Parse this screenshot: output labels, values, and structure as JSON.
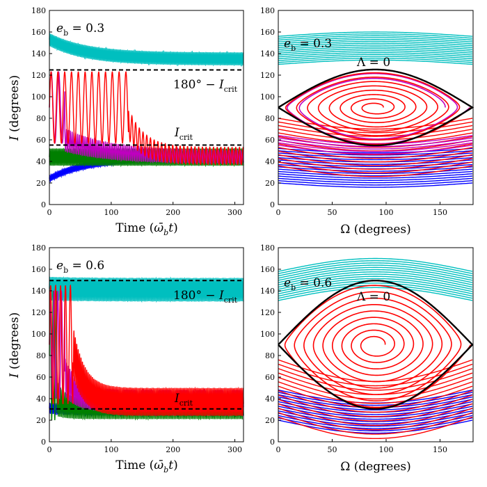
{
  "colors": {
    "cyan": "#00bfbf",
    "red": "#ff0000",
    "magenta": "#bf00bf",
    "green": "#007f00",
    "blue": "#0000ff",
    "black": "#000000"
  },
  "chart_data": [
    {
      "id": "p0",
      "type": "line",
      "kind": "time",
      "eb": 0.3,
      "xlim": [
        0,
        314
      ],
      "ylim": [
        0,
        180
      ],
      "xticks": [
        0,
        100,
        200,
        300
      ],
      "yticks": [
        0,
        20,
        40,
        60,
        80,
        100,
        120,
        140,
        160,
        180
      ],
      "xlabel": "Time (ω̄_b t)",
      "ylabel": "I (degrees)",
      "annotations": {
        "eb_label": "e_b = 0.3",
        "upper_label": "180° − I_crit",
        "lower_label": "I_crit"
      },
      "hlines": [
        124.8,
        55.2
      ],
      "series": [
        {
          "name": "cyan",
          "color": "cyan",
          "pattern": "decay",
          "start": 153,
          "end": 135,
          "tau": 60,
          "amp": 6,
          "period": 2.2
        },
        {
          "name": "blue",
          "color": "blue",
          "pattern": "decay",
          "start": 24,
          "end": 43,
          "tau": 60,
          "amp": 3,
          "period": 2.2
        },
        {
          "name": "green",
          "color": "green",
          "pattern": "decay",
          "start": 44,
          "end": 44,
          "tau": 60,
          "amp": 8,
          "period": 2.2
        },
        {
          "name": "magenta",
          "color": "magenta",
          "pattern": "flip",
          "t_flip": 25,
          "hi_center": 90,
          "hi_amp": 33,
          "hi_period": 12,
          "lo_start": 60,
          "lo_end": 44,
          "lo_tau": 70,
          "lo_amp": 6,
          "lo_period": 3
        },
        {
          "name": "red",
          "color": "red",
          "pattern": "flip",
          "t_flip": 128,
          "hi_center": 90,
          "hi_amp": 33,
          "hi_period": 11,
          "lo_start": 75,
          "lo_end": 45,
          "lo_tau": 25,
          "lo_amp": 8,
          "lo_period": 6
        }
      ]
    },
    {
      "id": "p1",
      "type": "line",
      "kind": "phase",
      "eb": 0.3,
      "xlim": [
        0,
        180
      ],
      "ylim": [
        0,
        180
      ],
      "xticks": [
        0,
        50,
        100,
        150
      ],
      "yticks": [
        0,
        20,
        40,
        60,
        80,
        100,
        120,
        140,
        160,
        180
      ],
      "xlabel": "Ω (degrees)",
      "ylabel": "",
      "annotations": {
        "eb_label": "e_b = 0.3",
        "sep_label": "Λ = 0"
      },
      "separatrix": {
        "center": 90,
        "halfwidth": 35.2
      },
      "bands": [
        {
          "color": "cyan",
          "lo": 130,
          "hi": 156,
          "swing": 4,
          "n": 16
        },
        {
          "color": "blue",
          "lo": 20,
          "hi": 52,
          "swing": -4,
          "n": 16
        },
        {
          "color": "red",
          "lo": 36,
          "hi": 80,
          "swing": -10,
          "n": 14
        },
        {
          "color": "magenta",
          "lo": 55,
          "hi": 64,
          "swing": -8,
          "n": 5
        }
      ],
      "spirals": [
        {
          "color": "magenta",
          "turns": 2,
          "r_start": 0.72,
          "r_end": 0.97
        },
        {
          "color": "red",
          "turns": 8,
          "r_start": 0.08,
          "r_end": 0.98
        }
      ]
    },
    {
      "id": "p2",
      "type": "line",
      "kind": "time",
      "eb": 0.6,
      "xlim": [
        0,
        314
      ],
      "ylim": [
        0,
        180
      ],
      "xticks": [
        0,
        100,
        200,
        300
      ],
      "yticks": [
        0,
        20,
        40,
        60,
        80,
        100,
        120,
        140,
        160,
        180
      ],
      "xlabel": "Time (ω̄_b t)",
      "ylabel": "I (degrees)",
      "annotations": {
        "eb_label": "e_b = 0.6",
        "upper_label": "180° − I_crit",
        "lower_label": "I_crit"
      },
      "hlines": [
        149.5,
        30.5
      ],
      "series": [
        {
          "name": "cyan",
          "color": "cyan",
          "pattern": "decay",
          "start": 142,
          "end": 141,
          "tau": 60,
          "amp": 11,
          "period": 2.2
        },
        {
          "name": "blue",
          "color": "blue",
          "pattern": "decay",
          "start": 31,
          "end": 29,
          "tau": 60,
          "amp": 5,
          "period": 2.2
        },
        {
          "name": "green",
          "color": "green",
          "pattern": "flip",
          "t_flip": 12,
          "hi_center": 80,
          "hi_amp": 60,
          "hi_period": 5,
          "lo_start": 40,
          "lo_end": 30,
          "lo_tau": 15,
          "lo_amp": 9,
          "lo_period": 2.5
        },
        {
          "name": "magenta",
          "color": "magenta",
          "pattern": "flip",
          "t_flip": 25,
          "hi_center": 90,
          "hi_amp": 50,
          "hi_period": 6,
          "lo_start": 60,
          "lo_end": 38,
          "lo_tau": 20,
          "lo_amp": 10,
          "lo_period": 2.5
        },
        {
          "name": "red",
          "color": "red",
          "pattern": "flip",
          "t_flip": 38,
          "hi_center": 90,
          "hi_amp": 55,
          "hi_period": 8,
          "lo_start": 85,
          "lo_end": 37,
          "lo_tau": 18,
          "lo_amp": 13,
          "lo_period": 2.3
        }
      ]
    },
    {
      "id": "p3",
      "type": "line",
      "kind": "phase",
      "eb": 0.6,
      "xlim": [
        0,
        180
      ],
      "ylim": [
        0,
        180
      ],
      "xticks": [
        0,
        50,
        100,
        150
      ],
      "yticks": [
        0,
        20,
        40,
        60,
        80,
        100,
        120,
        140,
        160,
        180
      ],
      "xlabel": "Ω (degrees)",
      "ylabel": "",
      "annotations": {
        "eb_label": "e_b = 0.6",
        "sep_label": "Λ = 0"
      },
      "separatrix": {
        "center": 90,
        "halfwidth": 59.5
      },
      "bands": [
        {
          "color": "cyan",
          "lo": 131,
          "hi": 158,
          "swing": 12,
          "n": 14
        },
        {
          "color": "blue",
          "lo": 20,
          "hi": 48,
          "swing": -12,
          "n": 14
        },
        {
          "color": "red",
          "lo": 23,
          "hi": 76,
          "swing": -20,
          "n": 14
        }
      ],
      "spirals": [
        {
          "color": "red",
          "turns": 9,
          "r_start": 0.1,
          "r_end": 0.98
        }
      ]
    }
  ]
}
